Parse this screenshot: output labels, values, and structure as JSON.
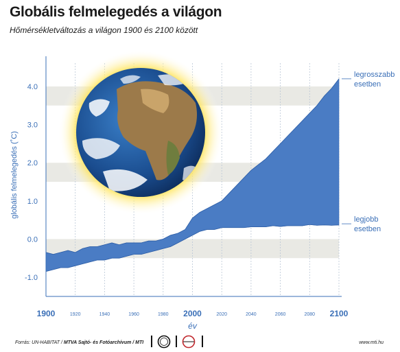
{
  "title": "Globális felmelegedés a világon",
  "subtitle": "Hőmérsékletváltozás a világon 1900 és 2100 között",
  "footer": {
    "source_prefix": "Forrás: UN-HABITAT / ",
    "source_org": "MTVA Sajtó- és Fotóarchívum / MTI",
    "url": "www.mti.hu"
  },
  "chart_data": {
    "type": "area",
    "xlabel": "év",
    "ylabel": "globális felmelegedés (˚C)",
    "xlim": [
      1900,
      2100
    ],
    "ylim": [
      -1.5,
      4.5
    ],
    "x_ticks_major": [
      "1900",
      "2000",
      "2100"
    ],
    "x_ticks_minor": [
      "1920",
      "1940",
      "1960",
      "1980",
      "2020",
      "2040",
      "2060",
      "2080"
    ],
    "y_ticks": [
      "4.0",
      "3.0",
      "2.0",
      "1.0",
      "0.0",
      "-1.0"
    ],
    "grid": "horizontal bands",
    "colors": {
      "area": "#4a7cc4",
      "axis_text": "#3a6fb7",
      "band": "#e9e9e4"
    },
    "annotations": [
      {
        "line1": "legrosszabb",
        "line2": "esetben",
        "x": 2100,
        "y": 4.2
      },
      {
        "line1": "legjobb",
        "line2": "esetben",
        "x": 2100,
        "y": 0.4
      }
    ],
    "series": [
      {
        "name": "legrosszabb esetben",
        "x": [
          1900,
          1905,
          1910,
          1915,
          1920,
          1925,
          1930,
          1935,
          1940,
          1945,
          1950,
          1955,
          1960,
          1965,
          1970,
          1975,
          1980,
          1985,
          1990,
          1995,
          2000,
          2005,
          2010,
          2015,
          2020,
          2025,
          2030,
          2035,
          2040,
          2045,
          2050,
          2055,
          2060,
          2065,
          2070,
          2075,
          2080,
          2085,
          2090,
          2095,
          2100
        ],
        "y": [
          -0.35,
          -0.4,
          -0.35,
          -0.3,
          -0.35,
          -0.25,
          -0.2,
          -0.2,
          -0.15,
          -0.1,
          -0.15,
          -0.1,
          -0.1,
          -0.1,
          -0.05,
          -0.05,
          0.0,
          0.1,
          0.15,
          0.25,
          0.55,
          0.7,
          0.8,
          0.9,
          1.0,
          1.2,
          1.4,
          1.6,
          1.8,
          1.95,
          2.1,
          2.3,
          2.5,
          2.7,
          2.9,
          3.1,
          3.3,
          3.5,
          3.75,
          3.95,
          4.2
        ]
      },
      {
        "name": "legjobb esetben",
        "x": [
          1900,
          1905,
          1910,
          1915,
          1920,
          1925,
          1930,
          1935,
          1940,
          1945,
          1950,
          1955,
          1960,
          1965,
          1970,
          1975,
          1980,
          1985,
          1990,
          1995,
          2000,
          2005,
          2010,
          2015,
          2020,
          2025,
          2030,
          2035,
          2040,
          2045,
          2050,
          2055,
          2060,
          2065,
          2070,
          2075,
          2080,
          2085,
          2090,
          2095,
          2100
        ],
        "y": [
          -0.85,
          -0.8,
          -0.75,
          -0.75,
          -0.7,
          -0.65,
          -0.6,
          -0.55,
          -0.55,
          -0.5,
          -0.5,
          -0.45,
          -0.4,
          -0.4,
          -0.35,
          -0.3,
          -0.25,
          -0.2,
          -0.1,
          0.0,
          0.1,
          0.2,
          0.25,
          0.25,
          0.3,
          0.3,
          0.3,
          0.3,
          0.32,
          0.32,
          0.32,
          0.35,
          0.33,
          0.35,
          0.35,
          0.35,
          0.38,
          0.36,
          0.37,
          0.36,
          0.37
        ]
      }
    ]
  }
}
